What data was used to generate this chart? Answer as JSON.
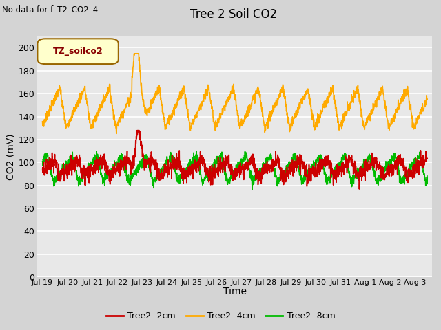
{
  "title": "Tree 2 Soil CO2",
  "subtitle": "No data for f_T2_CO2_4",
  "xlabel": "Time",
  "ylabel": "CO2 (mV)",
  "ylim": [
    0,
    210
  ],
  "yticks": [
    0,
    20,
    40,
    60,
    80,
    100,
    120,
    140,
    160,
    180,
    200
  ],
  "background_color": "#d4d4d4",
  "plot_bg_color": "#e8e8e8",
  "grid_color": "#ffffff",
  "legend_label": "TZ_soilco2",
  "legend_bg": "#ffffcc",
  "legend_border": "#996600",
  "series": {
    "red": {
      "label": "Tree2 -2cm",
      "color": "#cc0000",
      "lw": 1.2
    },
    "orange": {
      "label": "Tree2 -4cm",
      "color": "#ffaa00",
      "lw": 1.2
    },
    "green": {
      "label": "Tree2 -8cm",
      "color": "#00bb00",
      "lw": 1.2
    }
  },
  "xtick_labels": [
    "Jul 19",
    "Jul 20",
    "Jul 21",
    "Jul 22",
    "Jul 23",
    "Jul 24",
    "Jul 25",
    "Jul 26",
    "Jul 27",
    "Jul 28",
    "Jul 29",
    "Jul 30",
    "Jul 31",
    "Aug 1",
    "Aug 2",
    "Aug 3"
  ],
  "xtick_positions": [
    0,
    1,
    2,
    3,
    4,
    5,
    6,
    7,
    8,
    9,
    10,
    11,
    12,
    13,
    14,
    15
  ]
}
